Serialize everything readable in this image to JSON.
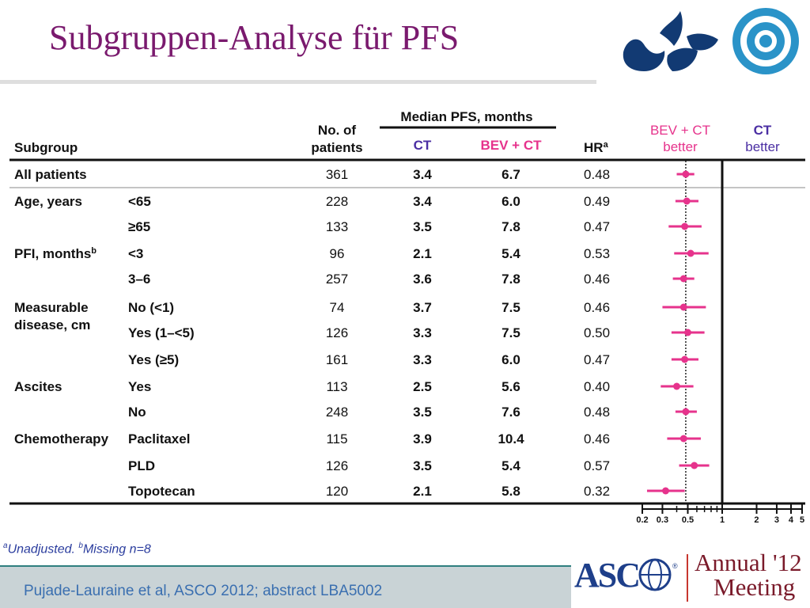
{
  "slide": {
    "title": "Subgruppen-Analyse für PFS",
    "citation": "Pujade-Lauraine et al, ASCO 2012; abstract LBA5002",
    "asco": {
      "name": "ASCO",
      "reg": "®",
      "meeting_line1": "Annual '12",
      "meeting_line2": "Meeting"
    }
  },
  "footnote": {
    "a_mark": "a",
    "a_text": "Unadjusted. ",
    "b_mark": "b",
    "b_text": "Missing n=8"
  },
  "table": {
    "headers": {
      "subgroup": "Subgroup",
      "patients_1": "No. of",
      "patients_2": "patients",
      "median_group": "Median PFS, months",
      "ct": "CT",
      "bev": "BEV + CT",
      "hr": "HR",
      "hr_sup": "a",
      "favors_bev_1": "BEV + CT",
      "favors_bev_2": "better",
      "favors_ct_1": "CT",
      "favors_ct_2": "better"
    },
    "groups": [
      {
        "label_lines": [
          "All patients"
        ],
        "rows": [
          0
        ]
      },
      {
        "label_lines": [
          "Age, years"
        ],
        "rows": [
          1,
          2
        ]
      },
      {
        "label_lines": [
          "PFI, months"
        ],
        "label_sup": "b",
        "rows": [
          3,
          4
        ]
      },
      {
        "label_lines": [
          "Measurable",
          "disease, cm"
        ],
        "rows": [
          5,
          6,
          7
        ]
      },
      {
        "label_lines": [
          "Ascites"
        ],
        "rows": [
          8,
          9
        ]
      },
      {
        "label_lines": [
          "Chemotherapy"
        ],
        "rows": [
          10,
          11,
          12
        ]
      }
    ],
    "rows": [
      {
        "level": "",
        "n": "361",
        "ct": "3.4",
        "bev": "6.7",
        "hr": "0.48"
      },
      {
        "level": "<65",
        "n": "228",
        "ct": "3.4",
        "bev": "6.0",
        "hr": "0.49"
      },
      {
        "level": "≥65",
        "n": "133",
        "ct": "3.5",
        "bev": "7.8",
        "hr": "0.47"
      },
      {
        "level": "<3",
        "n": "96",
        "ct": "2.1",
        "bev": "5.4",
        "hr": "0.53"
      },
      {
        "level": "3–6",
        "n": "257",
        "ct": "3.6",
        "bev": "7.8",
        "hr": "0.46"
      },
      {
        "level": "No (<1)",
        "n": "74",
        "ct": "3.7",
        "bev": "7.5",
        "hr": "0.46"
      },
      {
        "level": "Yes (1–<5)",
        "n": "126",
        "ct": "3.3",
        "bev": "7.5",
        "hr": "0.50"
      },
      {
        "level": "Yes (≥5)",
        "n": "161",
        "ct": "3.3",
        "bev": "6.0",
        "hr": "0.47"
      },
      {
        "level": "Yes",
        "n": "113",
        "ct": "2.5",
        "bev": "5.6",
        "hr": "0.40"
      },
      {
        "level": "No",
        "n": "248",
        "ct": "3.5",
        "bev": "7.6",
        "hr": "0.48"
      },
      {
        "level": "Paclitaxel",
        "n": "115",
        "ct": "3.9",
        "bev": "10.4",
        "hr": "0.46"
      },
      {
        "level": "PLD",
        "n": "126",
        "ct": "3.5",
        "bev": "5.4",
        "hr": "0.57"
      },
      {
        "level": "Topotecan",
        "n": "120",
        "ct": "2.1",
        "bev": "5.8",
        "hr": "0.32"
      }
    ]
  },
  "chart_data": {
    "type": "forest",
    "x_scale": "log",
    "xlim": [
      0.2,
      5
    ],
    "x_ticks": [
      0.2,
      0.3,
      0.5,
      1,
      2,
      3,
      4,
      5
    ],
    "x_tick_labels": [
      "0.2",
      "0.3",
      "0.5",
      "1",
      "2",
      "3",
      "4",
      "5"
    ],
    "minor_ticks": [
      0.4,
      0.6,
      0.7,
      0.8,
      0.9
    ],
    "reference_line": 1,
    "overall_dotted_line": 0.48,
    "left_label": "BEV + CT better",
    "right_label": "CT better",
    "categories": [
      "All patients",
      "Age <65",
      "Age ≥65",
      "PFI <3",
      "PFI 3–6",
      "Measurable disease No (<1)",
      "Measurable disease Yes (1–<5)",
      "Measurable disease Yes (≥5)",
      "Ascites Yes",
      "Ascites No",
      "Paclitaxel",
      "PLD",
      "Topotecan"
    ],
    "hr": [
      0.48,
      0.49,
      0.47,
      0.53,
      0.46,
      0.46,
      0.5,
      0.47,
      0.4,
      0.48,
      0.46,
      0.57,
      0.32
    ],
    "ci_lower": [
      0.4,
      0.39,
      0.34,
      0.38,
      0.37,
      0.3,
      0.36,
      0.36,
      0.29,
      0.39,
      0.33,
      0.42,
      0.22
    ],
    "ci_upper": [
      0.57,
      0.62,
      0.66,
      0.76,
      0.57,
      0.72,
      0.7,
      0.62,
      0.56,
      0.6,
      0.65,
      0.77,
      0.47
    ],
    "colors": {
      "marker": "#e6338c",
      "title": "#7a1a6e",
      "bev_label": "#e6338c",
      "ct_label": "#4b2fa3"
    }
  }
}
